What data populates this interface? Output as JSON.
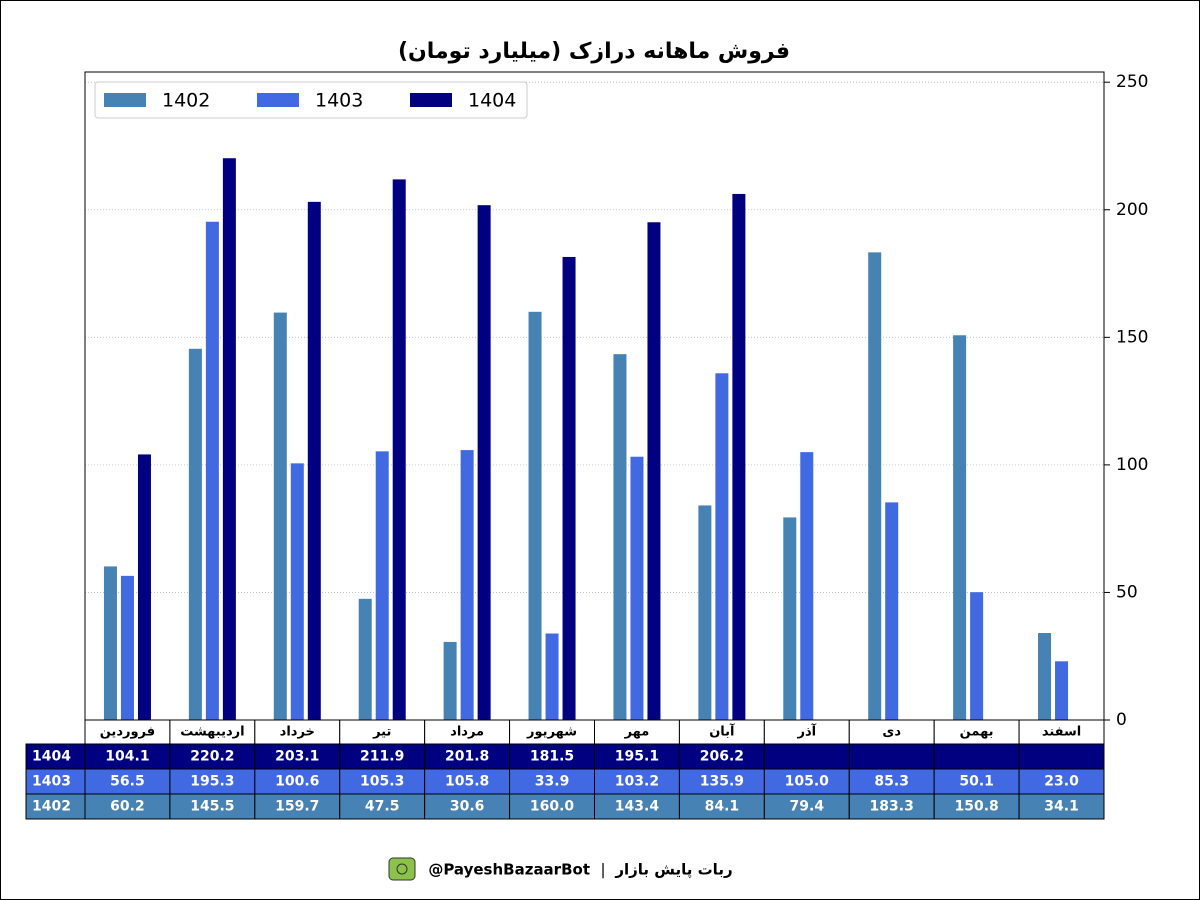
{
  "chart_data": {
    "type": "bar",
    "title": "فروش ماهانه درازک (میلیارد تومان)",
    "categories": [
      "فروردین",
      "اردیبهشت",
      "خرداد",
      "تیر",
      "مرداد",
      "شهریور",
      "مهر",
      "آبان",
      "آذر",
      "دی",
      "بهمن",
      "اسفند"
    ],
    "series": [
      {
        "name": "1402",
        "color": "#4682b4",
        "values": [
          60.2,
          145.5,
          159.7,
          47.5,
          30.6,
          160.0,
          143.4,
          84.1,
          79.4,
          183.3,
          150.8,
          34.1
        ],
        "value_labels": [
          "60.2",
          "145.5",
          "159.7",
          "47.5",
          "30.6",
          "160.0",
          "143.4",
          "84.1",
          "79.4",
          "183.3",
          "150.8",
          "34.1"
        ]
      },
      {
        "name": "1403",
        "color": "#4169e1",
        "values": [
          56.5,
          195.3,
          100.6,
          105.3,
          105.8,
          33.9,
          103.2,
          135.9,
          105.0,
          85.3,
          50.1,
          23.0
        ],
        "value_labels": [
          "56.5",
          "195.3",
          "100.6",
          "105.3",
          "105.8",
          "33.9",
          "103.2",
          "135.9",
          "105.0",
          "85.3",
          "50.1",
          "23.0"
        ]
      },
      {
        "name": "1404",
        "color": "#000080",
        "values": [
          104.1,
          220.2,
          203.1,
          211.9,
          201.8,
          181.5,
          195.1,
          206.2,
          null,
          null,
          null,
          null
        ],
        "value_labels": [
          "104.1",
          "220.2",
          "203.1",
          "211.9",
          "201.8",
          "181.5",
          "195.1",
          "206.2",
          null,
          null,
          null,
          null
        ]
      }
    ],
    "ylim": [
      0,
      254
    ],
    "yticks": [
      0,
      50,
      100,
      150,
      200,
      250
    ],
    "y_axis_side": "right",
    "grid": true,
    "legend": "upper left"
  },
  "footer": {
    "bot_name": "ربات پایش بازار",
    "separator": "|",
    "handle": "@PayeshBazaarBot"
  }
}
